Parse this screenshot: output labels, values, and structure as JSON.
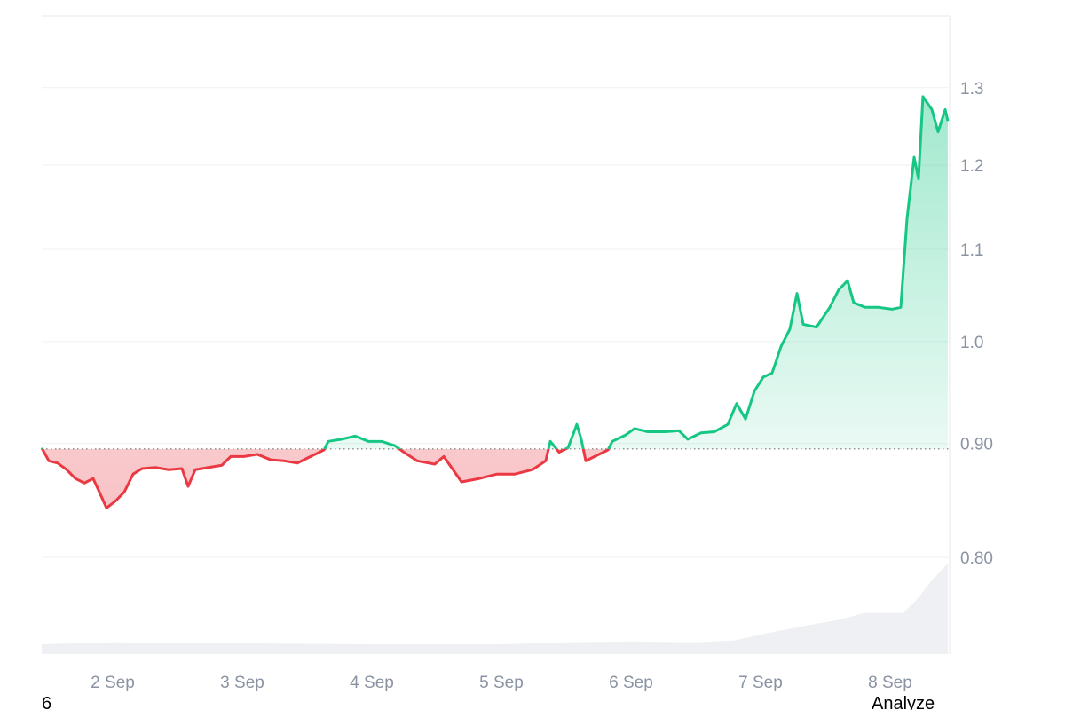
{
  "chart_data": {
    "type": "line",
    "x": [
      1.452,
      1.507,
      1.575,
      1.644,
      1.712,
      1.781,
      1.849,
      1.897,
      1.952,
      2.021,
      2.089,
      2.158,
      2.226,
      2.329,
      2.432,
      2.534,
      2.582,
      2.637,
      2.74,
      2.842,
      2.911,
      3.014,
      3.116,
      3.219,
      3.322,
      3.425,
      3.527,
      3.63,
      3.664,
      3.767,
      3.87,
      3.973,
      4.075,
      4.178,
      4.247,
      4.349,
      4.486,
      4.555,
      4.692,
      4.829,
      4.966,
      5.103,
      5.24,
      5.342,
      5.377,
      5.445,
      5.514,
      5.582,
      5.616,
      5.651,
      5.719,
      5.822,
      5.856,
      5.959,
      6.027,
      6.13,
      6.267,
      6.37,
      6.438,
      6.541,
      6.644,
      6.747,
      6.815,
      6.884,
      6.952,
      7.021,
      7.089,
      7.158,
      7.226,
      7.281,
      7.329,
      7.432,
      7.534,
      7.603,
      7.671,
      7.719,
      7.808,
      7.911,
      8.014,
      8.082,
      8.13,
      8.185,
      8.219,
      8.253,
      8.322,
      8.37,
      8.425,
      8.445
    ],
    "values": [
      0.896,
      0.884,
      0.882,
      0.876,
      0.868,
      0.864,
      0.868,
      0.856,
      0.842,
      0.848,
      0.856,
      0.872,
      0.877,
      0.878,
      0.876,
      0.877,
      0.861,
      0.876,
      0.878,
      0.88,
      0.888,
      0.888,
      0.89,
      0.885,
      0.884,
      0.882,
      0.888,
      0.894,
      0.902,
      0.904,
      0.907,
      0.902,
      0.902,
      0.898,
      0.892,
      0.884,
      0.881,
      0.888,
      0.865,
      0.868,
      0.872,
      0.872,
      0.876,
      0.884,
      0.902,
      0.892,
      0.896,
      0.918,
      0.904,
      0.884,
      0.888,
      0.894,
      0.902,
      0.908,
      0.914,
      0.911,
      0.911,
      0.912,
      0.904,
      0.91,
      0.911,
      0.918,
      0.938,
      0.923,
      0.95,
      0.964,
      0.968,
      0.995,
      1.013,
      1.051,
      1.018,
      1.015,
      1.036,
      1.055,
      1.065,
      1.041,
      1.036,
      1.036,
      1.034,
      1.036,
      1.135,
      1.21,
      1.183,
      1.288,
      1.271,
      1.242,
      1.271,
      1.256
    ],
    "baseline": 0.895,
    "up_color": "#16c784",
    "down_color": "#ea3943",
    "volume": {
      "x": [
        1.452,
        2.0,
        3.0,
        4.0,
        5.0,
        5.5,
        6.0,
        6.5,
        6.8,
        7.0,
        7.3,
        7.6,
        7.8,
        8.1,
        8.2,
        8.3,
        8.445
      ],
      "values": [
        10,
        12,
        11,
        10,
        10,
        12,
        13,
        12,
        14,
        20,
        28,
        35,
        42,
        42,
        55,
        72,
        93
      ],
      "vlim": [
        0,
        100
      ],
      "color": "#eef0f3"
    },
    "xlim": [
      1.452,
      8.459
    ],
    "xticks": [
      {
        "value": 2,
        "label": "2 Sep"
      },
      {
        "value": 3,
        "label": "3 Sep"
      },
      {
        "value": 4,
        "label": "4 Sep"
      },
      {
        "value": 5,
        "label": "5 Sep"
      },
      {
        "value": 6,
        "label": "6 Sep"
      },
      {
        "value": 7,
        "label": "7 Sep"
      },
      {
        "value": 8,
        "label": "8 Sep"
      }
    ],
    "ylim": [
      0.724,
      1.4
    ],
    "log_y": true,
    "yticks": [
      {
        "value": 0.8,
        "label": "0.80"
      },
      {
        "value": 0.9,
        "label": "0.90"
      },
      {
        "value": 1.0,
        "label": "1.0"
      },
      1.1,
      1.2,
      1.3
    ],
    "grid": true,
    "footer_left": "6",
    "footer_right": "Analyze"
  }
}
